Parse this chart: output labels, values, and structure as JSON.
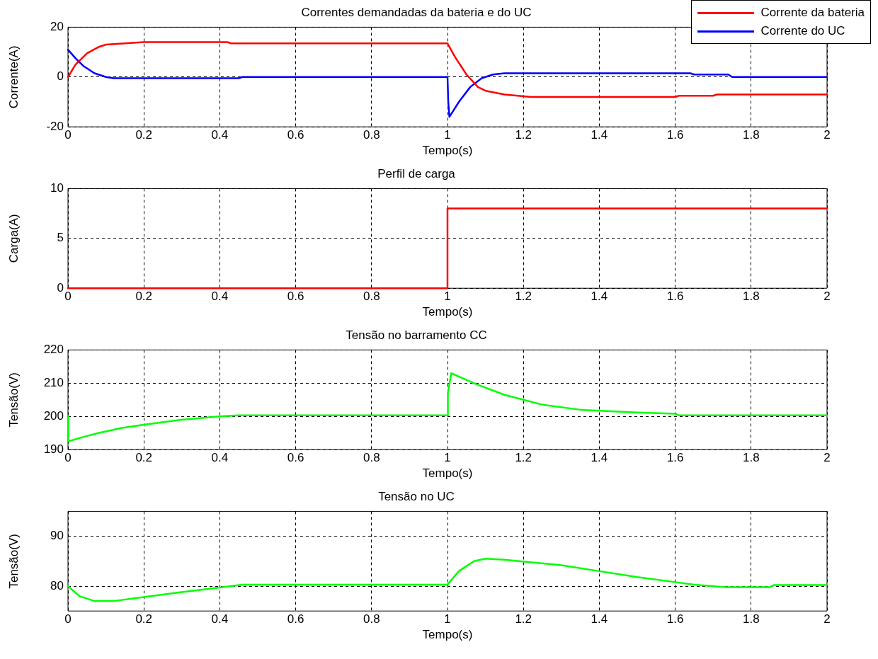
{
  "chart_data": [
    {
      "type": "line",
      "title": "Correntes demandadas da bateria e do UC",
      "xlabel": "Tempo(s)",
      "ylabel": "Corrente(A)",
      "xlim": [
        0,
        2
      ],
      "xticks": [
        0,
        0.2,
        0.4,
        0.6,
        0.8,
        1,
        1.2,
        1.4,
        1.6,
        1.8,
        2
      ],
      "ylim": [
        -20,
        20
      ],
      "yticks": [
        -20,
        0,
        20
      ],
      "grid": true,
      "legend": "top right",
      "marker": "none",
      "line_style": "solid",
      "series": [
        {
          "name": "Corrente da bateria",
          "color": "#ff0000",
          "x": [
            0,
            0.02,
            0.05,
            0.08,
            0.1,
            0.15,
            0.2,
            0.42,
            0.43,
            1.0,
            1.02,
            1.05,
            1.08,
            1.1,
            1.15,
            1.22,
            1.6,
            1.61,
            1.7,
            1.71,
            2
          ],
          "values": [
            0,
            5,
            9.5,
            12,
            13,
            13.5,
            14,
            14,
            13.5,
            13.5,
            8,
            1,
            -4,
            -5.5,
            -7,
            -8,
            -8,
            -7.5,
            -7.5,
            -7,
            -7
          ]
        },
        {
          "name": "Corrente do UC",
          "color": "#0000ff",
          "x": [
            0,
            0.02,
            0.04,
            0.07,
            0.1,
            0.12,
            0.45,
            0.46,
            1.0,
            1.002,
            1.005,
            1.03,
            1.06,
            1.09,
            1.12,
            1.15,
            1.64,
            1.65,
            1.74,
            1.75,
            2
          ],
          "values": [
            11,
            7.5,
            4.5,
            1.5,
            0,
            -0.5,
            -0.5,
            0,
            0,
            -10,
            -16,
            -10,
            -4,
            -0.5,
            1,
            1.5,
            1.5,
            1,
            1,
            0,
            0
          ]
        }
      ]
    },
    {
      "type": "line",
      "title": "Perfil de carga",
      "xlabel": "Tempo(s)",
      "ylabel": "Carga(A)",
      "xlim": [
        0,
        2
      ],
      "xticks": [
        0,
        0.2,
        0.4,
        0.6,
        0.8,
        1,
        1.2,
        1.4,
        1.6,
        1.8,
        2
      ],
      "ylim": [
        0,
        10
      ],
      "yticks": [
        0,
        5,
        10
      ],
      "grid": true,
      "marker": "none",
      "line_style": "solid",
      "series": [
        {
          "color": "#ff0000",
          "x": [
            0,
            1,
            1,
            2
          ],
          "values": [
            0,
            0,
            8,
            8
          ]
        }
      ]
    },
    {
      "type": "line",
      "title": "Tensão no barramento CC",
      "xlabel": "Tempo(s)",
      "ylabel": "Tensão(V)",
      "xlim": [
        0,
        2
      ],
      "xticks": [
        0,
        0.2,
        0.4,
        0.6,
        0.8,
        1,
        1.2,
        1.4,
        1.6,
        1.8,
        2
      ],
      "ylim": [
        190,
        220
      ],
      "yticks": [
        190,
        200,
        210,
        220
      ],
      "grid": true,
      "marker": "none",
      "line_style": "solid",
      "series": [
        {
          "color": "#00ff00",
          "x": [
            0,
            0.001,
            0.04,
            0.08,
            0.14,
            0.2,
            0.3,
            0.4,
            0.45,
            1.0,
            1.001,
            1.01,
            1.04,
            1.08,
            1.15,
            1.25,
            1.35,
            1.5,
            1.6,
            1.61,
            2
          ],
          "values": [
            200,
            192.5,
            193.8,
            195,
            196.5,
            197.5,
            199,
            200,
            200.3,
            200.3,
            207,
            213,
            211.5,
            209.5,
            206.5,
            203.5,
            202,
            201.2,
            200.8,
            200.3,
            200.3
          ]
        }
      ]
    },
    {
      "type": "line",
      "title": "Tensão no UC",
      "xlabel": "Tempo(s)",
      "ylabel": "Tensão(V)",
      "xlim": [
        0,
        2
      ],
      "xticks": [
        0,
        0.2,
        0.4,
        0.6,
        0.8,
        1,
        1.2,
        1.4,
        1.6,
        1.8,
        2
      ],
      "ylim": [
        75,
        95
      ],
      "yticks": [
        80,
        90
      ],
      "grid": true,
      "marker": "none",
      "line_style": "solid",
      "series": [
        {
          "color": "#00ff00",
          "x": [
            0,
            0.03,
            0.07,
            0.12,
            0.2,
            0.3,
            0.4,
            0.46,
            1.0,
            1.03,
            1.07,
            1.1,
            1.15,
            1.3,
            1.4,
            1.5,
            1.6,
            1.65,
            1.73,
            1.85,
            1.86,
            2
          ],
          "values": [
            80,
            78,
            77,
            77,
            77.8,
            78.8,
            79.7,
            80.3,
            80.3,
            83,
            85,
            85.5,
            85.3,
            84.2,
            83,
            81.8,
            80.8,
            80.3,
            79.8,
            79.8,
            80.2,
            80.2
          ]
        }
      ]
    }
  ]
}
